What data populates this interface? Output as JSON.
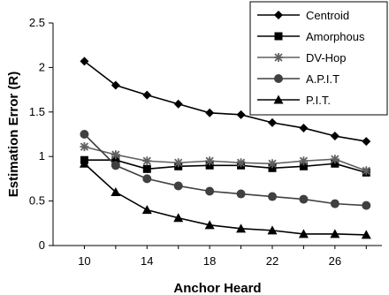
{
  "chart_data": {
    "type": "line",
    "title": "",
    "xlabel": "Anchor Heard",
    "ylabel": "Estimation Error  (R)",
    "xlim": [
      8,
      29
    ],
    "ylim": [
      0,
      2.5
    ],
    "x_ticks": [
      10,
      14,
      18,
      22,
      26
    ],
    "y_ticks": [
      0,
      0.5,
      1,
      1.5,
      2,
      2.5
    ],
    "y_tick_labels": [
      "0",
      "0.5",
      "1",
      "1.5",
      "2",
      "2.5"
    ],
    "grid": false,
    "legend_position": "top-right",
    "x": [
      10,
      12,
      14,
      16,
      18,
      20,
      22,
      24,
      26,
      28
    ],
    "series": [
      {
        "name": "Centroid",
        "marker": "diamond",
        "color": "#000000",
        "values": [
          2.07,
          1.8,
          1.69,
          1.59,
          1.49,
          1.47,
          1.38,
          1.32,
          1.23,
          1.17
        ]
      },
      {
        "name": "Amorphous",
        "marker": "square",
        "color": "#000000",
        "values": [
          0.96,
          0.96,
          0.86,
          0.89,
          0.9,
          0.9,
          0.87,
          0.89,
          0.92,
          0.82
        ]
      },
      {
        "name": "DV-Hop",
        "marker": "star",
        "color": "#606060",
        "values": [
          1.11,
          1.02,
          0.95,
          0.93,
          0.95,
          0.93,
          0.92,
          0.95,
          0.97,
          0.84
        ]
      },
      {
        "name": "A.P.I.T",
        "marker": "circle",
        "color": "#404040",
        "values": [
          1.25,
          0.9,
          0.75,
          0.67,
          0.61,
          0.58,
          0.55,
          0.52,
          0.47,
          0.45
        ]
      },
      {
        "name": "P.I.T.",
        "marker": "triangle",
        "color": "#000000",
        "values": [
          0.92,
          0.6,
          0.4,
          0.31,
          0.23,
          0.19,
          0.17,
          0.13,
          0.13,
          0.12
        ]
      }
    ]
  }
}
